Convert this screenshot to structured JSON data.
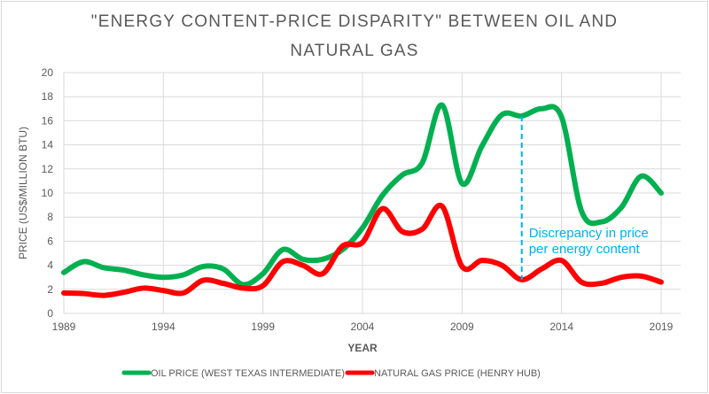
{
  "chart_data": {
    "type": "line",
    "title_lines": [
      "\"ENERGY CONTENT-PRICE DISPARITY\" BETWEEN OIL AND",
      "NATURAL GAS"
    ],
    "xlabel": "YEAR",
    "ylabel": "PRICE (US$/MILLION BTU)",
    "xlim": [
      1989,
      2019
    ],
    "ylim": [
      0,
      20
    ],
    "x_ticks": [
      1989,
      1994,
      1999,
      2004,
      2009,
      2014,
      2019
    ],
    "y_ticks": [
      0,
      2,
      4,
      6,
      8,
      10,
      12,
      14,
      16,
      18,
      20
    ],
    "grid": true,
    "legend_position": "bottom",
    "x": [
      1989,
      1990,
      1991,
      1992,
      1993,
      1994,
      1995,
      1996,
      1997,
      1998,
      1999,
      2000,
      2001,
      2002,
      2003,
      2004,
      2005,
      2006,
      2007,
      2008,
      2009,
      2010,
      2011,
      2012,
      2013,
      2014,
      2015,
      2016,
      2017,
      2018,
      2019
    ],
    "series": [
      {
        "name": "OIL PRICE (WEST TEXAS INTERMEDIATE)",
        "color": "#00b050",
        "values": [
          3.4,
          4.3,
          3.8,
          3.6,
          3.2,
          3.0,
          3.2,
          3.9,
          3.7,
          2.4,
          3.3,
          5.3,
          4.5,
          4.5,
          5.3,
          7.1,
          9.8,
          11.5,
          12.5,
          17.3,
          10.8,
          13.9,
          16.5,
          16.4,
          17.0,
          16.3,
          8.5,
          7.6,
          8.8,
          11.4,
          10.0
        ]
      },
      {
        "name": "NATURAL GAS PRICE (HENRY HUB)",
        "color": "#ff0000",
        "values": [
          1.7,
          1.65,
          1.5,
          1.75,
          2.1,
          1.9,
          1.7,
          2.75,
          2.5,
          2.1,
          2.3,
          4.3,
          4.0,
          3.3,
          5.6,
          5.9,
          8.7,
          6.8,
          7.0,
          8.9,
          3.9,
          4.4,
          4.0,
          2.8,
          3.7,
          4.4,
          2.6,
          2.5,
          3.0,
          3.1,
          2.6
        ]
      }
    ],
    "annotation": {
      "x": 2012,
      "text_lines": [
        "Discrepancy in price",
        "per energy content"
      ],
      "color": "#00b0f0"
    }
  }
}
